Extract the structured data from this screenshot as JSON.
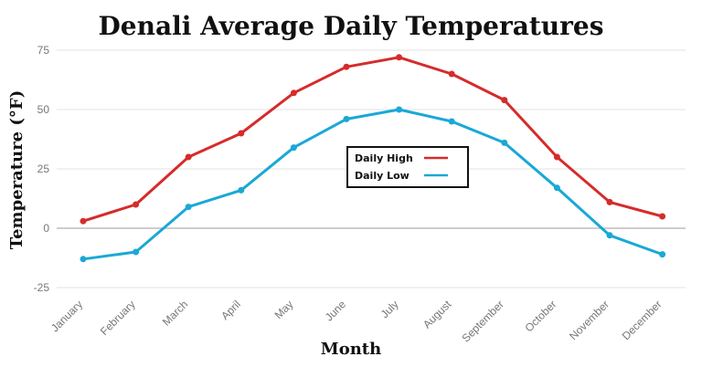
{
  "chart_data": {
    "type": "line",
    "title": "Denali Average Daily Temperatures",
    "xlabel": "Month",
    "ylabel": "Temperature (°F)",
    "categories": [
      "January",
      "February",
      "March",
      "April",
      "May",
      "June",
      "July",
      "August",
      "September",
      "October",
      "November",
      "December"
    ],
    "ylim": [
      -25,
      75
    ],
    "yticks": [
      -25,
      0,
      25,
      50,
      75
    ],
    "grid": true,
    "legend_position": "center",
    "series": [
      {
        "name": "Daily High",
        "color": "#d62b2b",
        "values": [
          3,
          10,
          30,
          40,
          57,
          68,
          72,
          65,
          54,
          30,
          11,
          5
        ]
      },
      {
        "name": "Daily Low",
        "color": "#1aa8d6",
        "values": [
          -13,
          -10,
          9,
          16,
          34,
          46,
          50,
          45,
          36,
          17,
          -3,
          -11
        ]
      }
    ]
  }
}
